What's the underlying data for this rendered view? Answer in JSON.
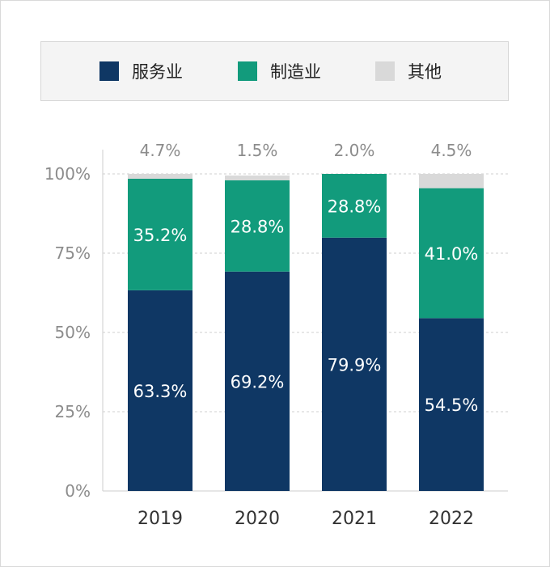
{
  "chart_data": {
    "type": "bar",
    "stacked": true,
    "categories": [
      "2019",
      "2020",
      "2021",
      "2022"
    ],
    "series": [
      {
        "name": "服务业",
        "color": "#0f3764",
        "values": [
          63.3,
          69.2,
          79.9,
          54.5
        ],
        "labels": [
          "63.3%",
          "69.2%",
          "79.9%",
          "54.5%"
        ]
      },
      {
        "name": "制造业",
        "color": "#129b7c",
        "values": [
          35.2,
          28.8,
          28.8,
          41.0
        ],
        "labels": [
          "35.2%",
          "28.8%",
          "28.8%",
          "41.0%"
        ]
      },
      {
        "name": "其他",
        "color": "#d9d9d9",
        "values": [
          4.7,
          1.5,
          2.0,
          4.5
        ],
        "labels": [
          "4.7%",
          "1.5%",
          "2.0%",
          "4.5%"
        ]
      }
    ],
    "ylim": [
      0,
      100
    ],
    "yticks": [
      "0%",
      "25%",
      "50%",
      "75%",
      "100%"
    ],
    "ytick_values": [
      0,
      25,
      50,
      75,
      100
    ],
    "grid": true,
    "legend_position": "top"
  }
}
